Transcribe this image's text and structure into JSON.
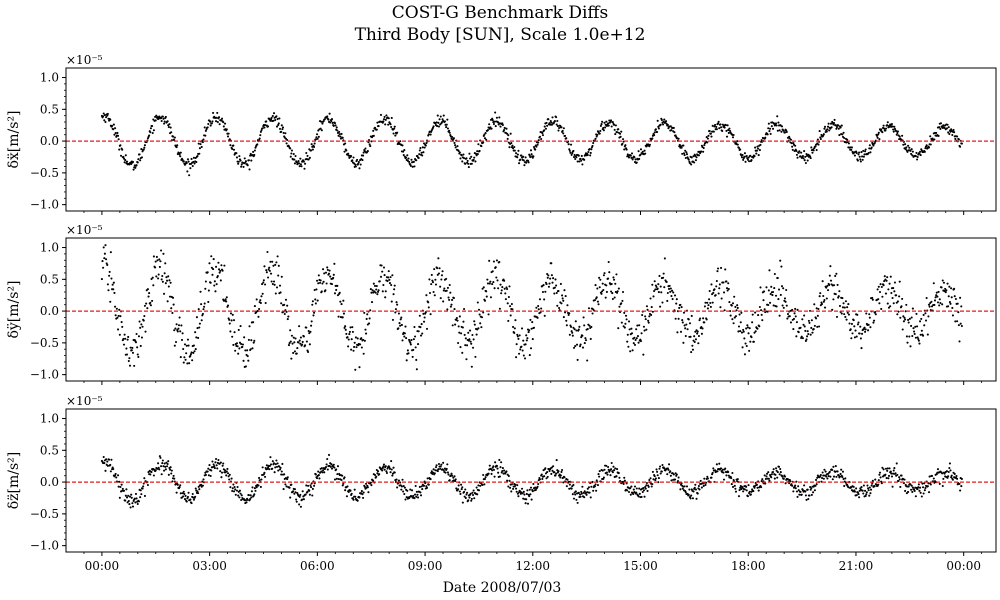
{
  "figure": {
    "title": "COST-G Benchmark Diffs",
    "subtitle": "Third Body [SUN], Scale 1.0e+12",
    "xlabel": "Date 2008/07/03"
  },
  "colors": {
    "points": "#000000",
    "reference_line": "#e41a1c",
    "axes": "#000000",
    "background": "#ffffff"
  },
  "chart_data": [
    {
      "type": "scatter",
      "ylabel": "δẍ[m/s²]",
      "offset_text": "×10⁻⁵",
      "ylim": [
        -1.1,
        1.15
      ],
      "yticks": [
        -1.0,
        -0.5,
        0.0,
        0.5,
        1.0
      ],
      "ytick_labels": [
        "−1.0",
        "−0.5",
        "0.0",
        "0.5",
        "1.0"
      ],
      "reference_line_y": 0.0,
      "signal": {
        "amplitude_start": 0.4,
        "amplitude_end": 0.22,
        "period_hours": 1.56,
        "phase": 1.3,
        "noise": 0.045
      }
    },
    {
      "type": "scatter",
      "ylabel": "δÿ[m/s²]",
      "offset_text": "×10⁻⁵",
      "ylim": [
        -1.1,
        1.15
      ],
      "yticks": [
        -1.0,
        -0.5,
        0.0,
        0.5,
        1.0
      ],
      "ytick_labels": [
        "−1.0",
        "−0.5",
        "0.0",
        "0.5",
        "1.0"
      ],
      "reference_line_y": 0.0,
      "signal": {
        "amplitude_start": 0.7,
        "amplitude_end": 0.3,
        "period_hours": 1.56,
        "phase": 1.4,
        "noise": 0.16
      }
    },
    {
      "type": "scatter",
      "ylabel": "δz̈[m/s²]",
      "offset_text": "×10⁻⁵",
      "ylim": [
        -1.1,
        1.15
      ],
      "yticks": [
        -1.0,
        -0.5,
        0.0,
        0.5,
        1.0
      ],
      "ytick_labels": [
        "−1.0",
        "−0.5",
        "0.0",
        "0.5",
        "1.0"
      ],
      "reference_line_y": 0.0,
      "signal": {
        "amplitude_start": 0.3,
        "amplitude_end": 0.12,
        "period_hours": 1.56,
        "phase": 1.25,
        "noise": 0.06
      }
    }
  ],
  "x_axis": {
    "xlim_hours": [
      -1.0,
      24.9
    ],
    "xticks_hours": [
      0,
      3,
      6,
      9,
      12,
      15,
      18,
      21,
      24
    ],
    "xtick_labels": [
      "00:00",
      "03:00",
      "06:00",
      "09:00",
      "12:00",
      "15:00",
      "18:00",
      "21:00",
      "00:00"
    ],
    "data_range_hours": [
      0.0,
      23.95
    ],
    "n_points": 1440
  }
}
